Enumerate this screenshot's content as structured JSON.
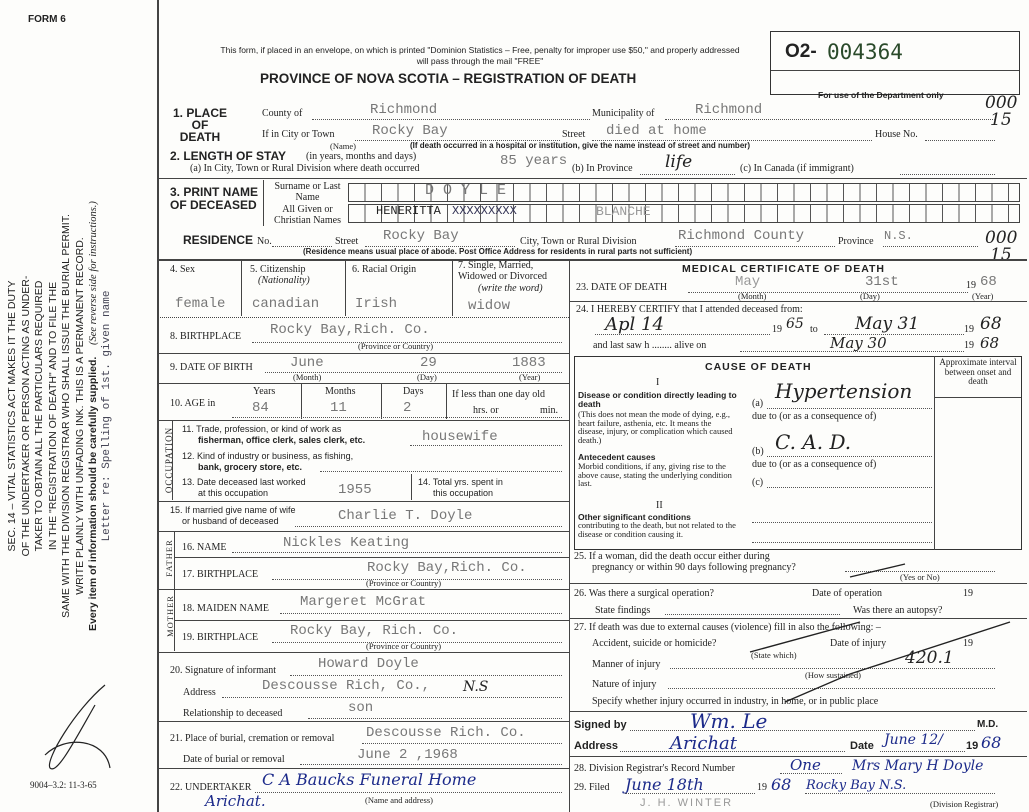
{
  "form": {
    "form_number": "FORM 6",
    "postal_notice": "This form, if placed in an envelope, on which is printed \"Dominion Statistics – Free, penalty for improper use $50,\" and properly addressed will pass through the mail \"FREE\"",
    "title": "PROVINCE OF NOVA SCOTIA – REGISTRATION OF DEATH",
    "registration_prefix": "O2-",
    "registration_number": "004364",
    "department_note": "For use of the Department only",
    "print_code": "9004–3.2: 11-3-65",
    "margin_codes": [
      "000",
      "15",
      "000",
      "15"
    ]
  },
  "side_notice": {
    "lines": [
      "SEC. 14 – VITAL STATISTICS ACT MAKES IT THE DUTY",
      "OF THE UNDERTAKER OR PERSON ACTING AS UNDER-",
      "TAKER TO OBTAIN ALL THE PARTICULARS REQUIRED",
      "IN THE \"REGISTRATION OF DEATH\" AND TO FILE THE",
      "SAME WITH THE DIVISION REGISTRAR WHO SHALL ISSUE THE BURIAL PERMIT.",
      "WRITE PLAINLY WITH UNFADING INK. THIS IS A PERMANENT RECORD.",
      "Every item of information should be carefully supplied."
    ],
    "reverse_note": "(See reverse side for instructions.)",
    "typed_note": "Letter re: Spelling of 1st. given name"
  },
  "place_of_death": {
    "label": "1. PLACE OF DEATH",
    "county_label": "County of",
    "county": "Richmond",
    "municipality_label": "Municipality of",
    "municipality": "Richmond",
    "city_label": "If in City or Town",
    "city": "Rocky Bay",
    "city_sub": "(Name)",
    "street_label": "Street",
    "street": "died at home",
    "house_label": "House No.",
    "hospital_note": "(If death occurred in a hospital or institution, give the name instead of street and number)"
  },
  "length_of_stay": {
    "label": "2. LENGTH OF STAY",
    "label_note": "(in years, months and days)",
    "a_label": "(a) In City, Town or Rural Division where death occurred",
    "a": "85 years",
    "b_label": "(b) In Province",
    "b": "life",
    "c_label": "(c) In Canada (if immigrant)"
  },
  "name": {
    "label": "3. PRINT NAME OF DECEASED",
    "surname_label": "Surname or Last Name",
    "surname": "D O Y L E",
    "given_label": "All Given or Christian Names",
    "given": "HENERITTA",
    "given_struck": "XXXXXXXXX",
    "given_2": "BLANCHE"
  },
  "residence": {
    "label": "RESIDENCE",
    "no_label": "No.",
    "street_label": "Street",
    "street": "Rocky Bay",
    "city_label": "City, Town or Rural Division",
    "city": "Richmond County",
    "province_label": "Province",
    "province": "N.S.",
    "note": "(Residence means usual place of abode. Post Office Address for residents in rural parts not sufficient)"
  },
  "personal": {
    "sex_label": "4. Sex",
    "sex": "female",
    "citizenship_label": "5. Citizenship",
    "citizenship_sub": "(Nationality)",
    "citizenship": "canadian",
    "racial_label": "6. Racial Origin",
    "racial": "Irish",
    "marital_label": "7. Single, Married, Widowed or Divorced",
    "marital_sub": "(write the word)",
    "marital": "widow",
    "birthplace_label": "8. BIRTHPLACE",
    "birthplace": "Rocky Bay,Rich. Co.",
    "province_sub": "(Province or Country)",
    "dob_label": "9. DATE OF BIRTH",
    "dob_month": "June",
    "dob_day": "29",
    "dob_year": "1883",
    "month_sub": "(Month)",
    "day_sub": "(Day)",
    "year_sub": "(Year)",
    "age_label": "10. AGE in",
    "years_label": "Years",
    "years": "84",
    "months_label": "Months",
    "months": "11",
    "days_label": "Days",
    "days": "2",
    "less_label": "If less than one day old",
    "hrs_label": "hrs. or",
    "min_label": "min."
  },
  "occupation": {
    "side_label": "OCCUPATION",
    "trade_label": "11. Trade, profession, or kind of work as",
    "trade_label_2": "fisherman, office clerk, sales clerk, etc.",
    "trade": "housewife",
    "industry_label": "12. Kind of industry or business, as fishing,",
    "industry_label_2": "bank, grocery store, etc.",
    "last_worked_label": "13. Date deceased last worked",
    "last_worked_label_2": "at this occupation",
    "last_worked": "1955",
    "total_label": "14. Total yrs. spent in",
    "total_label_2": "this occupation"
  },
  "spouse": {
    "label": "15. If married give name of wife",
    "label_2": "or husband of deceased",
    "value": "Charlie  T. Doyle"
  },
  "father": {
    "side_label": "FATHER",
    "name_label": "16. NAME",
    "name": "Nickles   Keating",
    "birthplace_label": "17. BIRTHPLACE",
    "birthplace": "Rocky Bay,Rich. Co."
  },
  "mother": {
    "side_label": "MOTHER",
    "name_label": "18. MAIDEN NAME",
    "name": "Margeret  McGrat",
    "birthplace_label": "19. BIRTHPLACE",
    "birthplace": "Rocky Bay, Rich. Co."
  },
  "informant": {
    "label": "20. Signature of informant",
    "name": "Howard Doyle",
    "address_label": "Address",
    "address": "Descousse Rich, Co., ",
    "address_hand": "N.S",
    "relationship_label": "Relationship to deceased",
    "relationship": "son"
  },
  "burial": {
    "place_label": "21. Place of burial, cremation or removal",
    "place": "Descousse Rich. Co.",
    "date_label": "Date of burial or removal",
    "date": "June 2 ,1968"
  },
  "undertaker": {
    "label": "22. UNDERTAKER",
    "value": "C A Baucks Funeral Home",
    "value_2": "Arichat.",
    "sub": "(Name and address)"
  },
  "medical": {
    "title": "MEDICAL CERTIFICATE OF DEATH",
    "dod_label": "23. DATE OF DEATH",
    "dod_month": "May",
    "dod_day": "31st",
    "dod_year_prefix": "19",
    "dod_year": "68",
    "certify_label": "24. I HEREBY CERTIFY that I attended deceased from:",
    "from": "Apl 14",
    "from_year": "65",
    "to_label": "to",
    "to": "May 31",
    "to_year": "68",
    "last_saw_label": "and last saw h ........ alive on",
    "last_saw": "May 30",
    "last_saw_year": "68",
    "nineteen": "19"
  },
  "cause": {
    "title": "CAUSE OF DEATH",
    "interval_label": "Approximate interval between onset and death",
    "part1": "I",
    "part2": "II",
    "direct_label": "Disease or condition directly leading to death",
    "direct_note": "(This does not mean the mode of dying, e.g., heart failure, asthenia, etc. It means the disease, injury, or complication which caused death.)",
    "a_label": "(a)",
    "a": "Hypertension",
    "due_to": "due to (or as a consequence of)",
    "antecedent_label": "Antecedent causes",
    "antecedent_note": "Morbid conditions, if any, giving rise to the above cause, stating the underlying condition last.",
    "b_label": "(b)",
    "b": "C. A. D.",
    "c_label": "(c)",
    "other_label": "Other significant conditions",
    "other_note": "contributing to the death, but not related to the disease or condition causing it."
  },
  "questions": {
    "q25": "25. If a woman, did the death occur either during",
    "q25_2": "pregnancy or within 90 days following pregnancy?",
    "yes_no": "(Yes or No)",
    "q26": "26. Was there a surgical operation?",
    "op_date": "Date of operation",
    "nineteen": "19",
    "findings": "State findings",
    "autopsy": "Was there an autopsy?",
    "q27": "27. If death was due to external causes (violence) fill in also the following: –",
    "accident": "Accident, suicide or homicide?",
    "state_which": "(State which)",
    "injury_date": "Date of injury",
    "manner": "Manner of injury",
    "how": "(How sustained)",
    "code": "420.1",
    "nature": "Nature of injury",
    "specify": "Specify whether injury occurred in industry, in home, or in public place"
  },
  "signature": {
    "signed_label": "Signed by",
    "signed": "Wm. Le",
    "md": "M.D.",
    "address_label": "Address",
    "address": "Arichat",
    "date_label": "Date",
    "date": "June 12/",
    "nineteen": "19",
    "year": "68"
  },
  "registrar": {
    "record_label": "28. Division Registrar's Record Number",
    "record": "One",
    "filed_label": "29. Filed",
    "filed": "June 18th",
    "nineteen": "19",
    "filed_year": "68",
    "registrar": "Mrs Mary H Doyle",
    "registrar_2": "Rocky Bay N.S.",
    "registrar_sub": "(Division Registrar)",
    "stamp": "J. H. WINTER"
  }
}
